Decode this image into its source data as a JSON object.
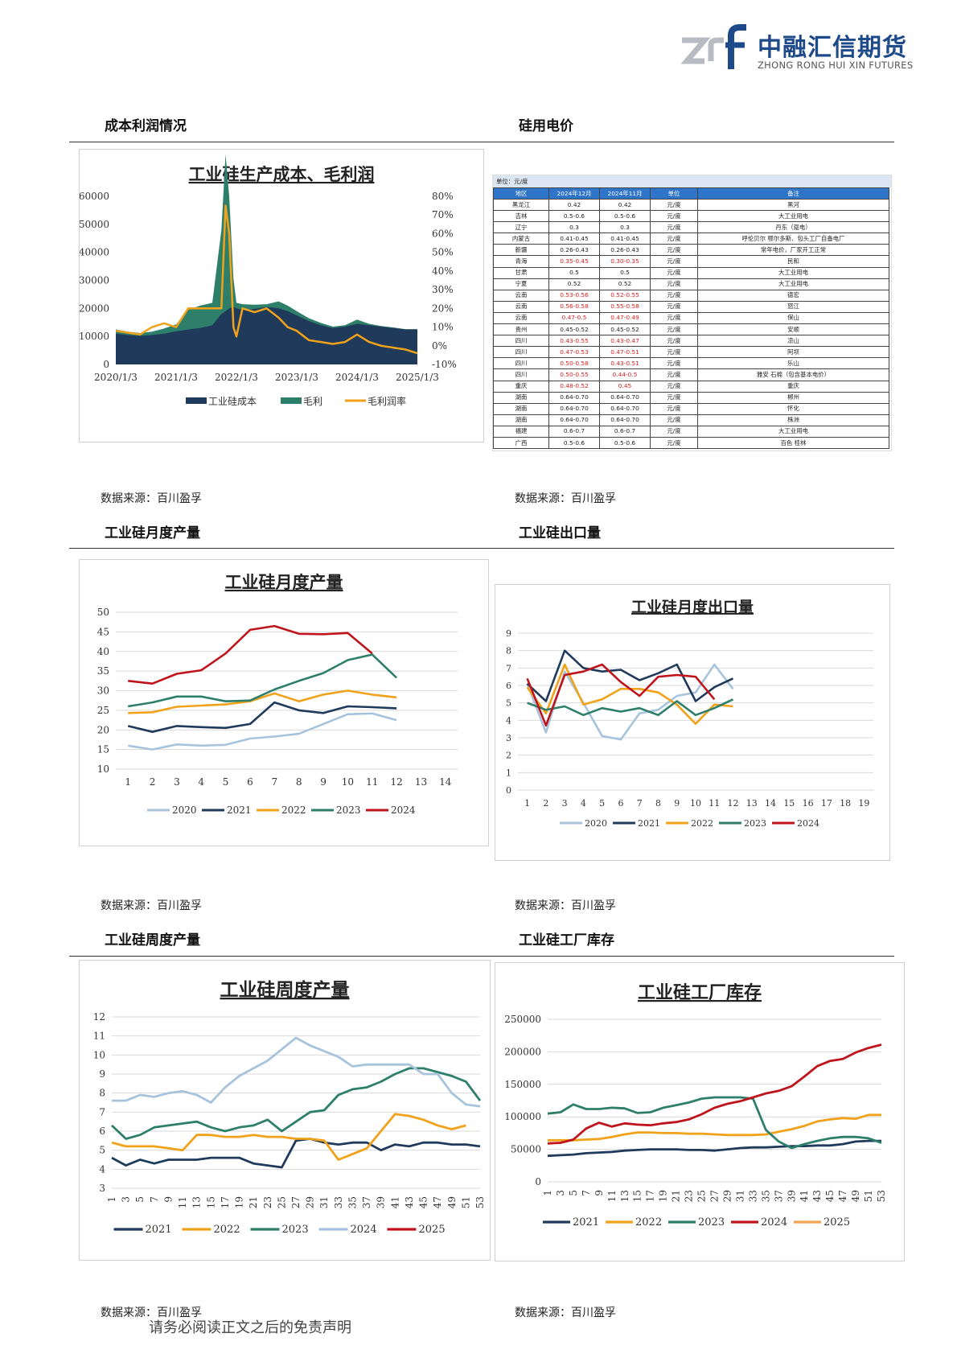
{
  "header": {
    "logo_cn": "中融汇信期货",
    "logo_en": "ZHONG RONG HUI XIN FUTURES"
  },
  "sections": {
    "s1_left": "成本利润情况",
    "s1_right": "硅用电价",
    "s2_left": "工业硅月度产量",
    "s2_right": "工业硅出口量",
    "s3_left": "工业硅周度产量",
    "s3_right": "工业硅工厂库存"
  },
  "source_text": "数据来源：百川盈孚",
  "disclaimer": "请务必阅读正文之后的免责声明",
  "colors": {
    "navy": "#1f3a5a",
    "teal": "#2e7f6a",
    "orange": "#f0a21a",
    "lightblue": "#a7c4dc",
    "red": "#c0141c",
    "lightorange": "#f3a453",
    "header_blue": "#2e74c9"
  },
  "electricity_table": {
    "unit": "单位：元/度",
    "headers": [
      "地区",
      "2024年12月",
      "2024年11月",
      "单位",
      "备注"
    ],
    "rows": [
      {
        "region": "黑龙江",
        "dec": "0.42",
        "nov": "0.42",
        "unit": "元/度",
        "note": "黑河",
        "red": false
      },
      {
        "region": "吉林",
        "dec": "0.5-0.6",
        "nov": "0.5-0.6",
        "unit": "元/度",
        "note": "大工业用电",
        "red": false
      },
      {
        "region": "辽宁",
        "dec": "0.3",
        "nov": "0.3",
        "unit": "元/度",
        "note": "丹东（趸电）",
        "red": false
      },
      {
        "region": "内蒙古",
        "dec": "0.41-0.45",
        "nov": "0.41-0.45",
        "unit": "元/度",
        "note": "呼伦贝尔 鄂尔多斯、包头工厂自备电厂",
        "red": false
      },
      {
        "region": "新疆",
        "dec": "0.26-0.43",
        "nov": "0.26-0.43",
        "unit": "元/度",
        "note": "常年电价，厂家开工正常",
        "red": false
      },
      {
        "region": "青海",
        "dec": "0.35-0.45",
        "nov": "0.30-0.35",
        "unit": "元/度",
        "note": "民和",
        "red": true
      },
      {
        "region": "甘肃",
        "dec": "0.5",
        "nov": "0.5",
        "unit": "元/度",
        "note": "大工业用电",
        "red": false
      },
      {
        "region": "宁夏",
        "dec": "0.52",
        "nov": "0.52",
        "unit": "元/度",
        "note": "大工业用电",
        "red": false
      },
      {
        "region": "云南",
        "dec": "0.53-0.56",
        "nov": "0.52-0.55",
        "unit": "元/度",
        "note": "德宏",
        "red": true
      },
      {
        "region": "云南",
        "dec": "0.56-0.58",
        "nov": "0.55-0.58",
        "unit": "元/度",
        "note": "怒江",
        "red": true
      },
      {
        "region": "云南",
        "dec": "0.47-0.5",
        "nov": "0.47-0.49",
        "unit": "元/度",
        "note": "保山",
        "red": true
      },
      {
        "region": "贵州",
        "dec": "0.45-0.52",
        "nov": "0.45-0.52",
        "unit": "元/度",
        "note": "安顺",
        "red": false
      },
      {
        "region": "四川",
        "dec": "0.43-0.55",
        "nov": "0.43-0.47",
        "unit": "元/度",
        "note": "凉山",
        "red": true
      },
      {
        "region": "四川",
        "dec": "0.47-0.53",
        "nov": "0.47-0.51",
        "unit": "元/度",
        "note": "阿坝",
        "red": true
      },
      {
        "region": "四川",
        "dec": "0.50-0.58",
        "nov": "0.43-0.51",
        "unit": "元/度",
        "note": "乐山",
        "red": true
      },
      {
        "region": "四川",
        "dec": "0.50-0.55",
        "nov": "0.44-0.5",
        "unit": "元/度",
        "note": "雅安 石棉（包含基本电价）",
        "red": true
      },
      {
        "region": "重庆",
        "dec": "0.48-0.52",
        "nov": "0.45",
        "unit": "元/度",
        "note": "重庆",
        "red": true
      },
      {
        "region": "湖南",
        "dec": "0.64-0.70",
        "nov": "0.64-0.70",
        "unit": "元/度",
        "note": "郴州",
        "red": false
      },
      {
        "region": "湖南",
        "dec": "0.64-0.70",
        "nov": "0.64-0.70",
        "unit": "元/度",
        "note": "怀化",
        "red": false
      },
      {
        "region": "湖南",
        "dec": "0.64-0.70",
        "nov": "0.64-0.70",
        "unit": "元/度",
        "note": "株洲",
        "red": false
      },
      {
        "region": "福建",
        "dec": "0.6-0.7",
        "nov": "0.6-0.7",
        "unit": "元/度",
        "note": "大工业用电",
        "red": false
      },
      {
        "region": "广西",
        "dec": "0.5-0.6",
        "nov": "0.5-0.6",
        "unit": "元/度",
        "note": "百色 桂林",
        "red": false
      }
    ]
  },
  "chart_data": [
    {
      "id": "cost_profit",
      "type": "area",
      "title": "工业硅生产成本、毛利润",
      "x_ticks": [
        "2020/1/3",
        "2021/1/3",
        "2022/1/3",
        "2023/1/3",
        "2024/1/3",
        "2025/1/3"
      ],
      "y_left_ticks": [
        "0",
        "10000",
        "20000",
        "30000",
        "40000",
        "50000",
        "60000"
      ],
      "y_right_ticks": [
        "-10%",
        "0%",
        "10%",
        "20%",
        "30%",
        "40%",
        "50%",
        "60%",
        "70%",
        "80%"
      ],
      "ylim_left": [
        0,
        60000
      ],
      "ylim_right": [
        -0.1,
        0.8
      ],
      "xlim": [
        2020.0,
        2025.0
      ],
      "legend": [
        "工业硅成本",
        "毛利",
        "毛利润率"
      ],
      "x": [
        2020.0,
        2020.2,
        2020.4,
        2020.6,
        2020.8,
        2021.0,
        2021.2,
        2021.4,
        2021.6,
        2021.75,
        2021.82,
        2021.88,
        2021.95,
        2022.0,
        2022.1,
        2022.3,
        2022.5,
        2022.7,
        2022.85,
        2023.0,
        2023.2,
        2023.4,
        2023.6,
        2023.8,
        2024.0,
        2024.2,
        2024.4,
        2024.6,
        2024.8,
        2025.0
      ],
      "series": [
        {
          "name": "工业硅成本",
          "values": [
            11000,
            10500,
            10200,
            10500,
            11000,
            11800,
            12500,
            13000,
            14000,
            18000,
            19000,
            20000,
            20500,
            20000,
            19500,
            19800,
            20500,
            20000,
            19000,
            17500,
            15500,
            14000,
            13000,
            13500,
            14500,
            14000,
            13500,
            13000,
            12500,
            12500
          ]
        },
        {
          "name": "毛利",
          "values": [
            1500,
            1200,
            1000,
            1200,
            1800,
            2500,
            7000,
            8000,
            8000,
            30000,
            56000,
            40000,
            10000,
            2000,
            2000,
            1500,
            1000,
            2500,
            2000,
            1500,
            1000,
            800,
            500,
            500,
            1500,
            500,
            200,
            200,
            100,
            100
          ]
        },
        {
          "name": "毛利润率",
          "values": [
            0.08,
            0.07,
            0.06,
            0.1,
            0.12,
            0.1,
            0.2,
            0.2,
            0.2,
            0.2,
            0.75,
            0.6,
            0.1,
            0.05,
            0.2,
            0.18,
            0.2,
            0.15,
            0.1,
            0.08,
            0.03,
            0.02,
            0.01,
            0.02,
            0.06,
            0.02,
            0.0,
            -0.01,
            -0.02,
            -0.04
          ]
        }
      ]
    },
    {
      "id": "monthly_output",
      "type": "line",
      "title": "工业硅月度产量",
      "x_ticks": [
        "1",
        "2",
        "3",
        "4",
        "5",
        "6",
        "7",
        "8",
        "9",
        "10",
        "11",
        "12",
        "13",
        "14"
      ],
      "y_ticks": [
        "10",
        "15",
        "20",
        "25",
        "30",
        "35",
        "40",
        "45",
        "50"
      ],
      "ylim": [
        10,
        50
      ],
      "xlim": [
        0.5,
        14.5
      ],
      "series": [
        {
          "name": "2020",
          "values": [
            16,
            15,
            16.3,
            16,
            16.2,
            17.8,
            18.3,
            19,
            21.5,
            24,
            24.2,
            22.5
          ]
        },
        {
          "name": "2021",
          "values": [
            21,
            19.5,
            21,
            20.7,
            20.5,
            21.5,
            27,
            25,
            24.3,
            26,
            25.8,
            25.5
          ]
        },
        {
          "name": "2022",
          "values": [
            24.3,
            24.5,
            25.9,
            26.2,
            26.5,
            27.3,
            29.3,
            27.3,
            29,
            30,
            29,
            28.3
          ]
        },
        {
          "name": "2023",
          "values": [
            26,
            27,
            28.5,
            28.5,
            27.3,
            27.5,
            30.3,
            32.5,
            34.5,
            37.8,
            39.2,
            33.3
          ]
        },
        {
          "name": "2024",
          "values": [
            32.5,
            31.8,
            34.3,
            35.2,
            39.5,
            45.5,
            46.5,
            44.5,
            44.4,
            44.7,
            39.5,
            null
          ]
        }
      ]
    },
    {
      "id": "monthly_export",
      "type": "line",
      "title": "工业硅月度出口量",
      "x_ticks": [
        "1",
        "2",
        "3",
        "4",
        "5",
        "6",
        "7",
        "8",
        "9",
        "10",
        "11",
        "12",
        "13",
        "14",
        "15",
        "16",
        "17",
        "18",
        "19"
      ],
      "y_ticks": [
        "0",
        "1",
        "2",
        "3",
        "4",
        "5",
        "6",
        "7",
        "8",
        "9"
      ],
      "ylim": [
        0,
        9
      ],
      "xlim": [
        0.5,
        19.5
      ],
      "series": [
        {
          "name": "2020",
          "values": [
            6.1,
            3.3,
            6.8,
            5,
            3.1,
            2.9,
            4.4,
            4.6,
            5.4,
            5.6,
            7.2,
            5.8
          ]
        },
        {
          "name": "2021",
          "values": [
            6.1,
            5.1,
            8,
            7,
            6.8,
            6.9,
            6.3,
            6.7,
            7.2,
            5.1,
            5.9,
            6.4
          ]
        },
        {
          "name": "2022",
          "values": [
            5.9,
            4.4,
            7.2,
            4.9,
            5.2,
            5.8,
            5.8,
            5.6,
            4.9,
            3.8,
            4.9,
            4.8
          ]
        },
        {
          "name": "2023",
          "values": [
            5,
            4.6,
            4.8,
            4.3,
            4.7,
            4.5,
            4.7,
            4.3,
            5.1,
            4.3,
            4.7,
            5.2
          ]
        },
        {
          "name": "2024",
          "values": [
            6.4,
            3.7,
            6.6,
            6.8,
            7.2,
            6.2,
            5.4,
            6.5,
            6.6,
            6.5,
            5.2,
            null
          ]
        }
      ]
    },
    {
      "id": "weekly_output",
      "type": "line",
      "title": "工业硅周度产量",
      "x_ticks": [
        "1",
        "3",
        "5",
        "7",
        "9",
        "11",
        "13",
        "15",
        "17",
        "19",
        "21",
        "23",
        "25",
        "27",
        "29",
        "31",
        "33",
        "35",
        "37",
        "39",
        "41",
        "43",
        "45",
        "47",
        "49",
        "51",
        "53"
      ],
      "y_ticks": [
        "3",
        "4",
        "5",
        "6",
        "7",
        "8",
        "9",
        "10",
        "11",
        "12"
      ],
      "ylim": [
        3,
        12
      ],
      "xlim": [
        1,
        53
      ],
      "x": [
        1,
        3,
        5,
        7,
        9,
        11,
        13,
        15,
        17,
        19,
        21,
        23,
        25,
        27,
        29,
        31,
        33,
        35,
        37,
        39,
        41,
        43,
        45,
        47,
        49,
        51,
        53
      ],
      "series": [
        {
          "name": "2021",
          "values": [
            4.6,
            4.2,
            4.5,
            4.3,
            4.5,
            4.5,
            4.5,
            4.6,
            4.6,
            4.6,
            4.3,
            4.2,
            4.1,
            5.5,
            5.6,
            5.4,
            5.3,
            5.4,
            5.4,
            5.0,
            5.3,
            5.2,
            5.4,
            5.4,
            5.3,
            5.3,
            5.2
          ]
        },
        {
          "name": "2022",
          "values": [
            5.4,
            5.2,
            5.2,
            5.2,
            5.1,
            5.0,
            5.8,
            5.8,
            5.7,
            5.7,
            5.8,
            5.7,
            5.7,
            5.6,
            5.6,
            5.5,
            4.5,
            4.8,
            5.1,
            6.0,
            6.9,
            6.8,
            6.6,
            6.3,
            6.1,
            6.3,
            null
          ]
        },
        {
          "name": "2023",
          "values": [
            6.3,
            5.6,
            5.8,
            6.2,
            6.3,
            6.4,
            6.5,
            6.2,
            6.0,
            6.2,
            6.3,
            6.6,
            6.0,
            6.5,
            7.0,
            7.1,
            7.9,
            8.2,
            8.3,
            8.6,
            9.0,
            9.3,
            9.3,
            9.1,
            8.9,
            8.6,
            7.6
          ]
        },
        {
          "name": "2024",
          "values": [
            7.6,
            7.6,
            7.9,
            7.8,
            8.0,
            8.1,
            7.9,
            7.5,
            8.3,
            8.9,
            9.3,
            9.7,
            10.3,
            10.9,
            10.5,
            10.2,
            9.9,
            9.4,
            9.5,
            9.5,
            9.5,
            9.5,
            9.0,
            9.0,
            8.0,
            7.4,
            7.3
          ]
        },
        {
          "name": "2025",
          "values": [
            null,
            null,
            null,
            null,
            null,
            null,
            null,
            null,
            null,
            null,
            null,
            null,
            null,
            null,
            null,
            null,
            null,
            null,
            null,
            null,
            null,
            null,
            null,
            null,
            null,
            null,
            null
          ]
        }
      ]
    },
    {
      "id": "factory_inventory",
      "type": "line",
      "title": "工业硅工厂库存",
      "x_ticks": [
        "1",
        "3",
        "5",
        "7",
        "9",
        "11",
        "13",
        "15",
        "17",
        "19",
        "21",
        "23",
        "25",
        "27",
        "29",
        "31",
        "33",
        "35",
        "37",
        "39",
        "41",
        "43",
        "45",
        "47",
        "49",
        "51",
        "53"
      ],
      "y_ticks": [
        "0",
        "50000",
        "100000",
        "150000",
        "200000",
        "250000"
      ],
      "ylim": [
        0,
        250000
      ],
      "xlim": [
        1,
        53
      ],
      "x": [
        1,
        3,
        5,
        7,
        9,
        11,
        13,
        15,
        17,
        19,
        21,
        23,
        25,
        27,
        29,
        31,
        33,
        35,
        37,
        39,
        41,
        43,
        45,
        47,
        49,
        51,
        53
      ],
      "series": [
        {
          "name": "2021",
          "values": [
            40000,
            41000,
            42000,
            44000,
            45000,
            46000,
            48000,
            49000,
            50000,
            50000,
            50000,
            49000,
            49000,
            48000,
            50000,
            52000,
            53000,
            53000,
            54000,
            55000,
            55000,
            56000,
            56000,
            58000,
            62000,
            63000,
            63000
          ]
        },
        {
          "name": "2022",
          "values": [
            64000,
            64000,
            64000,
            65000,
            66000,
            69000,
            73000,
            76000,
            76000,
            75000,
            75000,
            74000,
            74000,
            73000,
            72000,
            72000,
            72000,
            73000,
            77000,
            81000,
            86000,
            93000,
            96000,
            98000,
            97000,
            103000,
            103000
          ]
        },
        {
          "name": "2023",
          "values": [
            105000,
            107000,
            119000,
            112000,
            112000,
            114000,
            113000,
            106000,
            107000,
            114000,
            118000,
            122000,
            128000,
            130000,
            130000,
            130000,
            128000,
            80000,
            62000,
            52000,
            58000,
            63000,
            67000,
            69000,
            69000,
            67000,
            60000
          ]
        },
        {
          "name": "2024",
          "values": [
            59000,
            60000,
            65000,
            82000,
            91000,
            85000,
            90000,
            88000,
            87000,
            90000,
            92000,
            96000,
            104000,
            114000,
            120000,
            124000,
            130000,
            136000,
            140000,
            147000,
            162000,
            178000,
            186000,
            189000,
            199000,
            206000,
            211000
          ]
        },
        {
          "name": "2025",
          "values": [
            null,
            null,
            null,
            null,
            null,
            null,
            null,
            null,
            null,
            null,
            null,
            null,
            null,
            null,
            null,
            null,
            null,
            null,
            null,
            null,
            null,
            null,
            null,
            null,
            null,
            null,
            null
          ]
        }
      ]
    }
  ]
}
